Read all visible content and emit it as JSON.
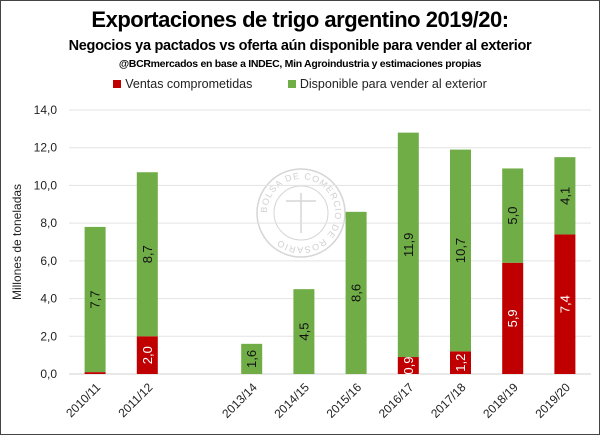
{
  "chart_data": {
    "type": "bar",
    "stacked": true,
    "title": "Exportaciones de trigo argentino 2019/20:",
    "subtitle": "Negocios ya pactados vs oferta aún disponible para vender al exterior",
    "source": "@BCRmercados en base a INDEC, Min Agroindustria y estimaciones propias",
    "ylabel": "Millones de toneladas",
    "xlabel": "",
    "ylim": [
      0,
      14
    ],
    "yticks": [
      "0,0",
      "2,0",
      "4,0",
      "6,0",
      "8,0",
      "10,0",
      "12,0",
      "14,0"
    ],
    "grid": true,
    "legend_position": "top",
    "categories": [
      "2010/11",
      "2011/12",
      "",
      "2013/14",
      "2014/15",
      "2015/16",
      "2016/17",
      "2017/18",
      "2018/19",
      "2019/20"
    ],
    "series": [
      {
        "name": "Ventas comprometidas",
        "color": "#c00000",
        "values": [
          0.1,
          2.0,
          null,
          0,
          0,
          0,
          0.9,
          1.2,
          5.9,
          7.4
        ],
        "labels": [
          "",
          "2,0",
          "",
          "",
          "",
          "",
          "0,9",
          "1,2",
          "5,9",
          "7,4"
        ]
      },
      {
        "name": "Disponible para vender al exterior",
        "color": "#70ad47",
        "values": [
          7.7,
          8.7,
          null,
          1.6,
          4.5,
          8.6,
          11.9,
          10.7,
          5.0,
          4.1
        ],
        "labels": [
          "7,7",
          "8,7",
          "",
          "1,6",
          "4,5",
          "8,6",
          "11,9",
          "10,7",
          "5,0",
          "4,1"
        ]
      }
    ]
  },
  "watermark": "BOLSA DE COMERCIO DE ROSARIO"
}
